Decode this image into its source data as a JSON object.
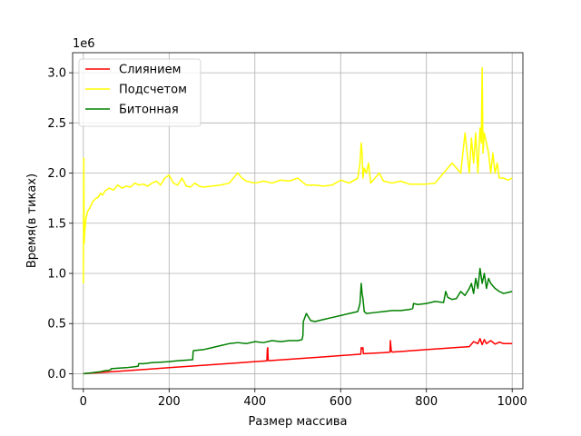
{
  "chart_data": {
    "type": "line",
    "title": "",
    "xlabel": "Размер массива",
    "ylabel": "Время(в тиках)",
    "offset_text": "1e6",
    "xlim": [
      -25,
      1025
    ],
    "ylim": [
      -150000,
      3200000
    ],
    "xticks": [
      0,
      200,
      400,
      600,
      800,
      1000
    ],
    "xtick_labels": [
      "0",
      "200",
      "400",
      "600",
      "800",
      "1000"
    ],
    "yticks": [
      0,
      500000,
      1000000,
      1500000,
      2000000,
      2500000,
      3000000
    ],
    "ytick_labels": [
      "0.0",
      "0.5",
      "1.0",
      "1.5",
      "2.0",
      "2.5",
      "3.0"
    ],
    "grid": true,
    "legend": "top-left",
    "series": [
      {
        "name": "Слиянием",
        "color": "#ff0000",
        "x": [
          0,
          50,
          100,
          150,
          200,
          250,
          300,
          350,
          400,
          428,
          429,
          430,
          431,
          432,
          450,
          500,
          550,
          600,
          647,
          648,
          650,
          652,
          653,
          700,
          715,
          716,
          718,
          720,
          750,
          800,
          850,
          900,
          910,
          920,
          925,
          930,
          935,
          940,
          950,
          960,
          970,
          980,
          1000
        ],
        "y": [
          0,
          15000,
          30000,
          45000,
          60000,
          75000,
          90000,
          105000,
          120000,
          128000,
          240000,
          260000,
          140000,
          130000,
          135000,
          150000,
          165000,
          180000,
          195000,
          260000,
          250000,
          260000,
          200000,
          210000,
          215000,
          330000,
          230000,
          216000,
          225000,
          240000,
          255000,
          270000,
          320000,
          300000,
          350000,
          290000,
          340000,
          300000,
          330000,
          295000,
          315000,
          300000,
          300000
        ]
      },
      {
        "name": "Подсчетом",
        "color": "#ffff00",
        "x": [
          0,
          1,
          2,
          3,
          4,
          5,
          6,
          8,
          10,
          15,
          20,
          25,
          30,
          35,
          40,
          45,
          50,
          60,
          70,
          80,
          90,
          100,
          110,
          120,
          130,
          140,
          150,
          160,
          170,
          180,
          190,
          200,
          210,
          220,
          230,
          240,
          250,
          260,
          270,
          280,
          300,
          320,
          340,
          360,
          370,
          380,
          400,
          420,
          440,
          460,
          480,
          500,
          520,
          540,
          560,
          580,
          600,
          620,
          640,
          645,
          648,
          650,
          652,
          655,
          660,
          665,
          670,
          680,
          690,
          700,
          720,
          740,
          760,
          780,
          800,
          820,
          840,
          850,
          860,
          870,
          880,
          890,
          895,
          900,
          905,
          910,
          915,
          920,
          925,
          928,
          930,
          932,
          935,
          940,
          945,
          950,
          955,
          960,
          965,
          970,
          980,
          990,
          1000
        ],
        "y": [
          900000,
          2150000,
          1300000,
          1400000,
          1450000,
          1500000,
          1550000,
          1580000,
          1620000,
          1650000,
          1700000,
          1730000,
          1750000,
          1760000,
          1800000,
          1780000,
          1820000,
          1850000,
          1830000,
          1880000,
          1850000,
          1870000,
          1860000,
          1900000,
          1880000,
          1890000,
          1870000,
          1900000,
          1920000,
          1880000,
          1950000,
          1980000,
          1900000,
          1880000,
          1950000,
          1870000,
          1860000,
          1900000,
          1870000,
          1860000,
          1870000,
          1880000,
          1900000,
          2000000,
          1950000,
          1920000,
          1900000,
          1920000,
          1900000,
          1930000,
          1920000,
          1950000,
          1880000,
          1880000,
          1870000,
          1880000,
          1930000,
          1900000,
          1950000,
          2100000,
          2300000,
          2200000,
          1950000,
          2050000,
          2000000,
          2100000,
          1900000,
          1950000,
          2000000,
          1920000,
          1900000,
          1920000,
          1890000,
          1890000,
          1890000,
          1900000,
          2000000,
          2050000,
          2100000,
          2050000,
          2000000,
          2400000,
          2200000,
          2000000,
          2350000,
          2100000,
          2400000,
          2000000,
          2450000,
          2300000,
          3050000,
          2200000,
          2400000,
          2300000,
          2200000,
          2000000,
          2200000,
          2000000,
          2100000,
          1950000,
          1950000,
          1930000,
          1950000
        ]
      },
      {
        "name": "Битонная",
        "color": "#008000",
        "x": [
          0,
          10,
          20,
          30,
          40,
          50,
          60,
          64,
          65,
          80,
          100,
          120,
          128,
          129,
          140,
          160,
          180,
          200,
          220,
          240,
          255,
          256,
          257,
          280,
          300,
          320,
          340,
          360,
          380,
          400,
          420,
          440,
          460,
          480,
          500,
          510,
          512,
          513,
          520,
          530,
          540,
          560,
          580,
          600,
          620,
          640,
          645,
          648,
          650,
          652,
          655,
          660,
          680,
          700,
          720,
          740,
          760,
          768,
          770,
          780,
          800,
          820,
          840,
          845,
          850,
          860,
          870,
          880,
          890,
          900,
          905,
          910,
          915,
          920,
          925,
          930,
          935,
          940,
          945,
          950,
          960,
          970,
          980,
          990,
          1000
        ],
        "y": [
          0,
          5000,
          10000,
          15000,
          20000,
          30000,
          35000,
          40000,
          50000,
          55000,
          60000,
          70000,
          75000,
          100000,
          100000,
          110000,
          115000,
          120000,
          130000,
          135000,
          140000,
          220000,
          230000,
          240000,
          260000,
          280000,
          300000,
          310000,
          300000,
          320000,
          310000,
          330000,
          320000,
          330000,
          330000,
          340000,
          380000,
          520000,
          600000,
          530000,
          520000,
          540000,
          560000,
          580000,
          600000,
          620000,
          700000,
          900000,
          800000,
          750000,
          620000,
          600000,
          610000,
          620000,
          630000,
          630000,
          640000,
          650000,
          700000,
          690000,
          700000,
          720000,
          710000,
          820000,
          760000,
          740000,
          750000,
          820000,
          780000,
          850000,
          900000,
          800000,
          950000,
          850000,
          1050000,
          900000,
          1000000,
          850000,
          950000,
          900000,
          850000,
          820000,
          800000,
          810000,
          820000
        ]
      }
    ]
  }
}
